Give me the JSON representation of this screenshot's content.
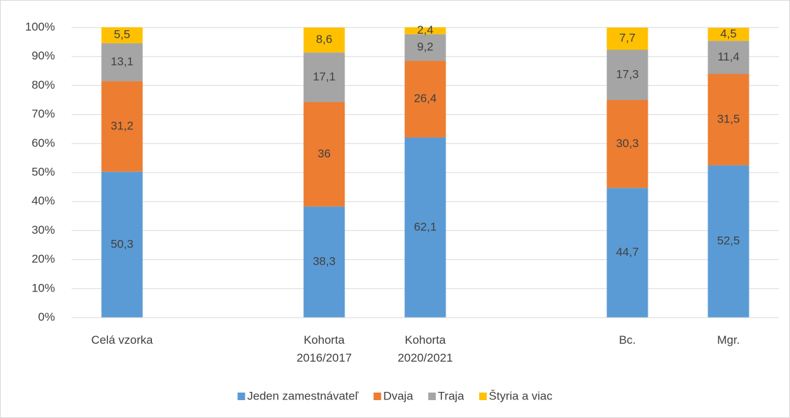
{
  "chart_data": {
    "type": "stacked_bar",
    "categories": [
      "Celá vzorka",
      null,
      "Kohorta 2016/2017",
      "Kohorta 2020/2021",
      null,
      "Bc.",
      "Mgr."
    ],
    "series": [
      {
        "name": "Jeden zamestnávateľ",
        "color": "#5b9bd5",
        "values": [
          50.3,
          null,
          38.3,
          62.1,
          null,
          44.7,
          52.5
        ],
        "value_labels": [
          "50,3",
          null,
          "38,3",
          "62,1",
          null,
          "44,7",
          "52,5"
        ]
      },
      {
        "name": "Dvaja",
        "color": "#ed7d31",
        "values": [
          31.2,
          null,
          36,
          26.4,
          null,
          30.3,
          31.5
        ],
        "value_labels": [
          "31,2",
          null,
          "36",
          "26,4",
          null,
          "30,3",
          "31,5"
        ]
      },
      {
        "name": "Traja",
        "color": "#a5a5a5",
        "values": [
          13.1,
          null,
          17.1,
          9.2,
          null,
          17.3,
          11.4
        ],
        "value_labels": [
          "13,1",
          null,
          "17,1",
          "9,2",
          null,
          "17,3",
          "11,4"
        ]
      },
      {
        "name": "Štyria a viac",
        "color": "#ffc000",
        "values": [
          5.5,
          null,
          8.6,
          2.4,
          null,
          7.7,
          4.5
        ],
        "value_labels": [
          "5,5",
          null,
          "8,6",
          "2,4",
          null,
          "7,7",
          "4,5"
        ]
      }
    ],
    "ylim": [
      0,
      100
    ],
    "yticks": [
      {
        "value": 0,
        "label": "0%"
      },
      {
        "value": 10,
        "label": "10%"
      },
      {
        "value": 20,
        "label": "20%"
      },
      {
        "value": 30,
        "label": "30%"
      },
      {
        "value": 40,
        "label": "40%"
      },
      {
        "value": 50,
        "label": "50%"
      },
      {
        "value": 60,
        "label": "60%"
      },
      {
        "value": 70,
        "label": "70%"
      },
      {
        "value": 80,
        "label": "80%"
      },
      {
        "value": 90,
        "label": "90%"
      },
      {
        "value": 100,
        "label": "100%"
      }
    ],
    "grid": true,
    "legend": "bottom"
  }
}
